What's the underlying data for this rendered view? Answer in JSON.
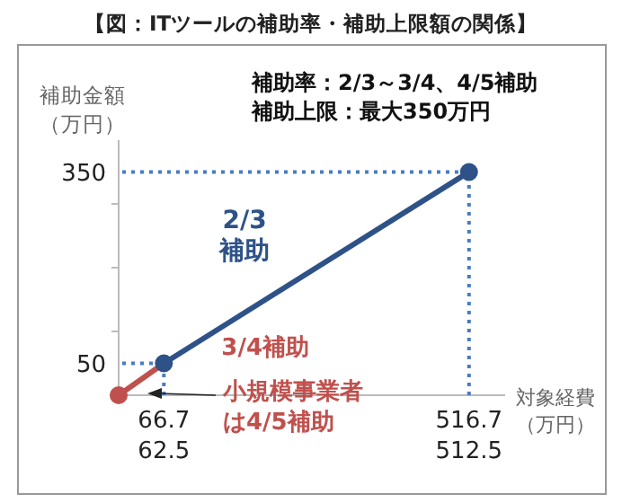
{
  "chart_data": {
    "type": "line",
    "title": "【図：ITツールの補助率・補助上限額の関係】",
    "xlabel": "対象経費（万円）",
    "ylabel": "補助金額（万円）",
    "series": [
      {
        "name": "3/4補助",
        "color": "#c0504d",
        "x": [
          0,
          66.7
        ],
        "values": [
          0,
          50
        ]
      },
      {
        "name": "2/3補助",
        "color": "#2e5288",
        "x": [
          66.7,
          516.7
        ],
        "values": [
          50,
          350
        ]
      }
    ],
    "xlim": [
      0,
      570
    ],
    "ylim": [
      0,
      400
    ],
    "xticks": [
      66.7,
      516.7
    ],
    "yticks": [
      {
        "value": 0,
        "label": null
      },
      {
        "value": 50,
        "label": "50"
      },
      {
        "value": 100,
        "label": null
      },
      {
        "value": 200,
        "label": null
      },
      {
        "value": 300,
        "label": null
      },
      {
        "value": 350,
        "label": "350"
      }
    ],
    "ref_lines": [
      {
        "axis": "y",
        "value": 50,
        "color": "#4a7cc0",
        "line_style": "dotted"
      },
      {
        "axis": "y",
        "value": 350,
        "color": "#4a7cc0",
        "line_style": "dotted"
      },
      {
        "axis": "x",
        "value": 66.7,
        "color": "#4a7cc0",
        "line_style": "dotted"
      },
      {
        "axis": "x",
        "value": 516.7,
        "color": "#4a7cc0",
        "line_style": "dotted"
      }
    ],
    "annotations": [
      "補助率：2/3～3/4、4/5補助",
      "補助上限：最大350万円",
      "小規模事業者は4/5補助",
      "62.5",
      "512.5"
    ],
    "marker": "circle",
    "grid": false
  }
}
